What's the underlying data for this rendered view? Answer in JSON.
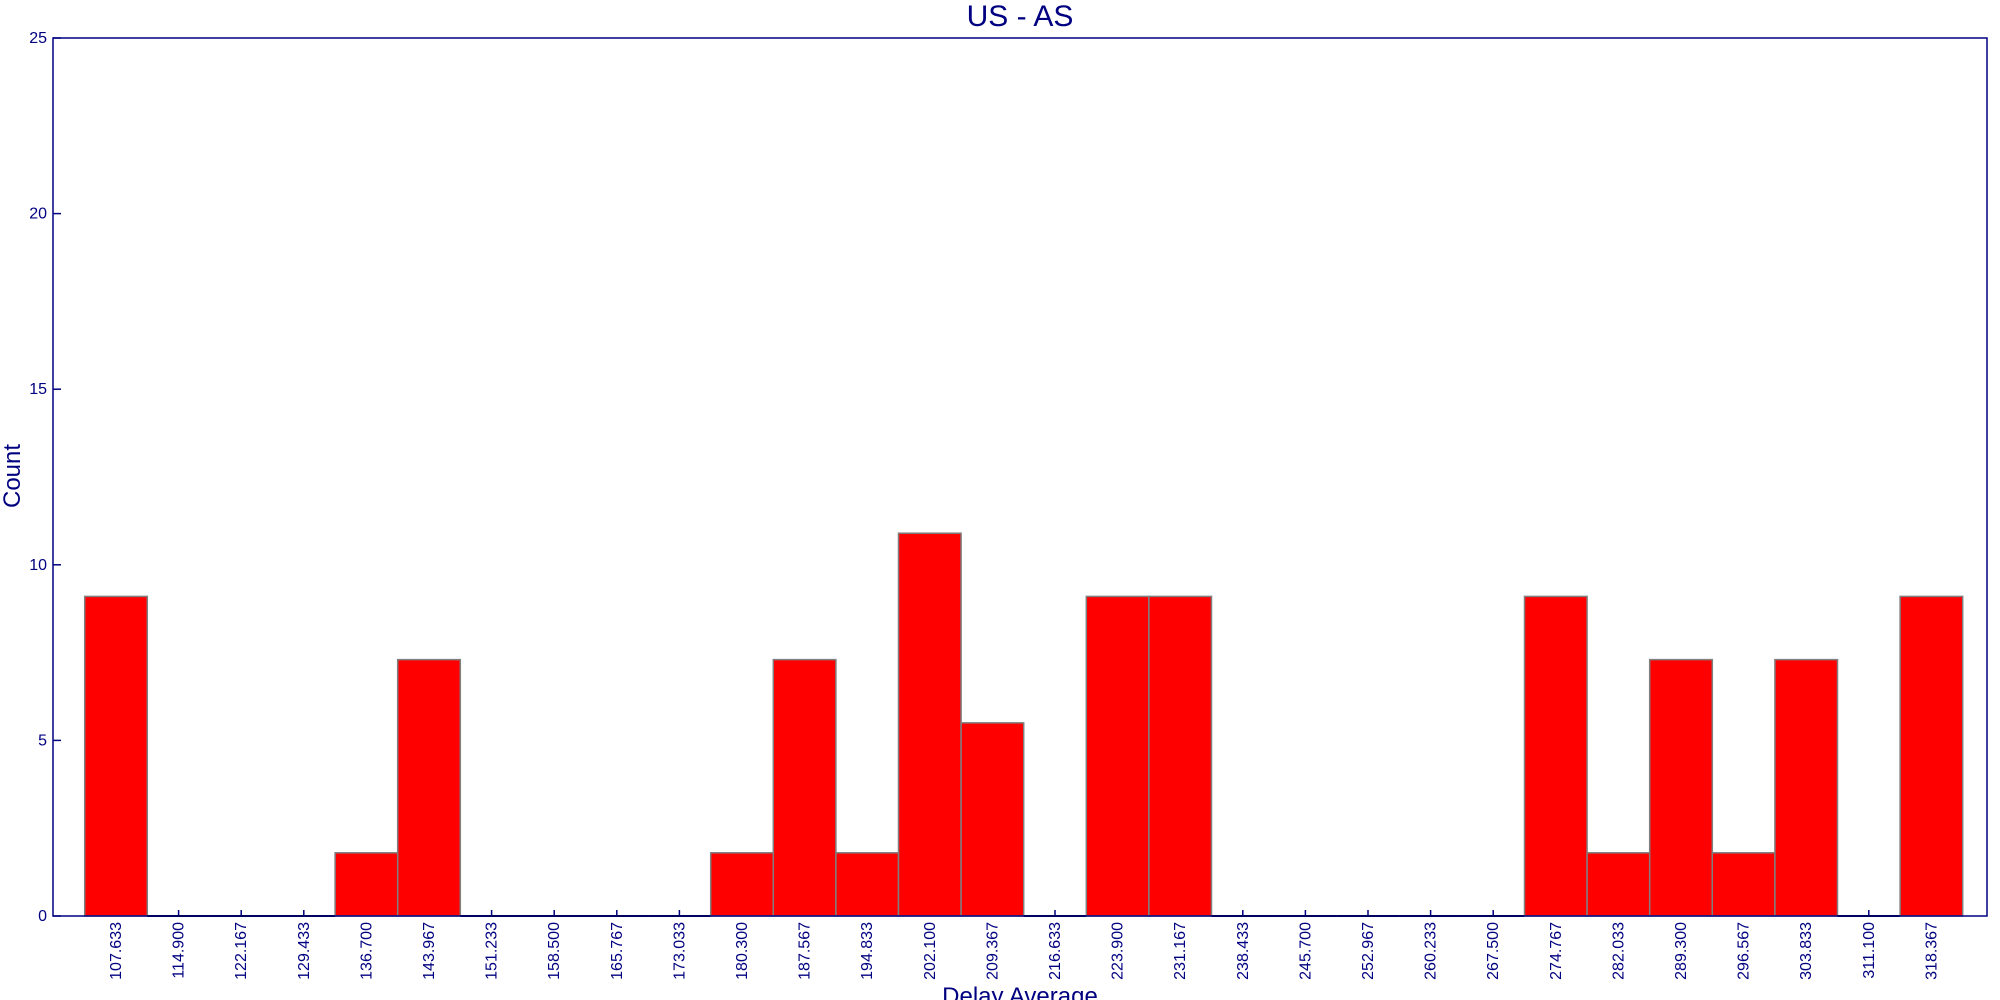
{
  "chart_data": {
    "type": "bar",
    "title": "US - AS",
    "xlabel": "Delay Average",
    "ylabel": "Count",
    "ylim": [
      0,
      25
    ],
    "yticks": [
      0,
      5,
      10,
      15,
      20,
      25
    ],
    "categories": [
      "107.633",
      "114.900",
      "122.167",
      "129.433",
      "136.700",
      "143.967",
      "151.233",
      "158.500",
      "165.767",
      "173.033",
      "180.300",
      "187.567",
      "194.833",
      "202.100",
      "209.367",
      "216.633",
      "223.900",
      "231.167",
      "238.433",
      "245.700",
      "252.967",
      "260.233",
      "267.500",
      "274.767",
      "282.033",
      "289.300",
      "296.567",
      "303.833",
      "311.100",
      "318.367"
    ],
    "values": [
      9.1,
      0,
      0,
      0,
      1.8,
      7.3,
      0,
      0,
      0,
      0,
      1.8,
      7.3,
      1.8,
      10.9,
      5.5,
      0,
      9.1,
      9.1,
      0,
      0,
      0,
      0,
      0,
      9.1,
      1.8,
      7.3,
      1.8,
      7.3,
      0,
      9.1
    ],
    "grid": false,
    "colors": {
      "bar_fill": "#ff0000",
      "bar_edge": "#7f7f7f",
      "text": "#000080",
      "frame": "#000080"
    }
  }
}
